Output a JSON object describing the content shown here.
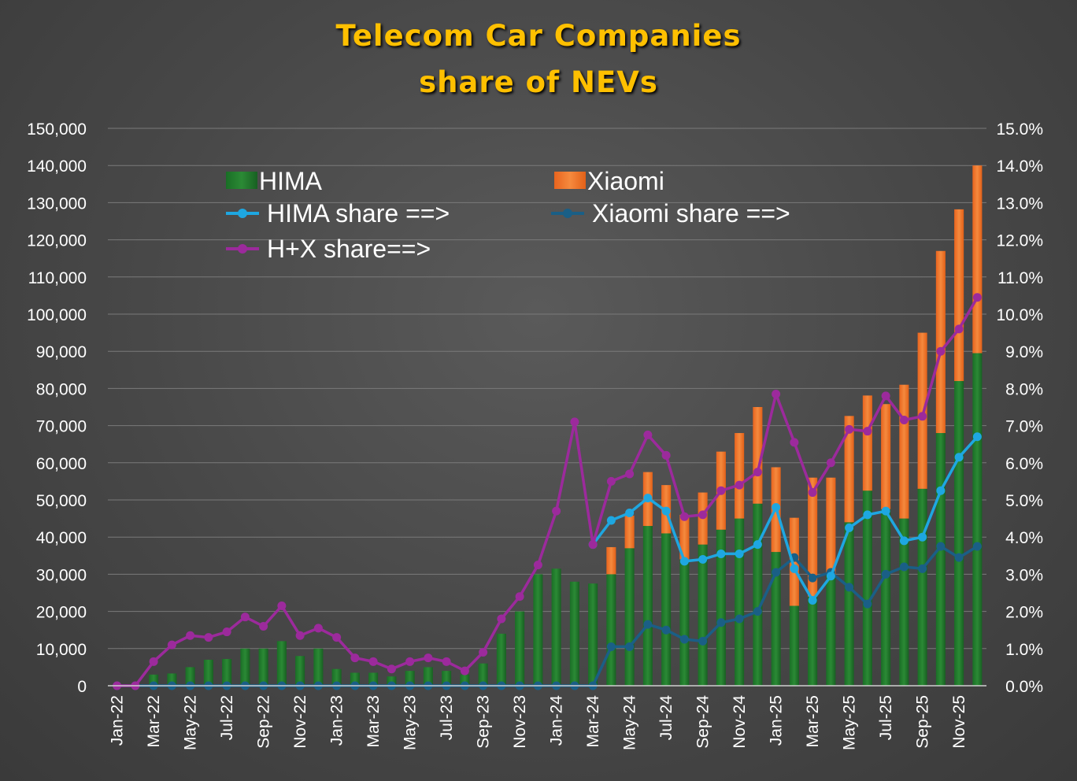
{
  "chart_data": {
    "type": "bar",
    "title_line1": "Telecom Car Companies",
    "title_line2": "share of NEVs",
    "categories": [
      "Jan-22",
      "Feb-22",
      "Mar-22",
      "Apr-22",
      "May-22",
      "Jun-22",
      "Jul-22",
      "Aug-22",
      "Sep-22",
      "Oct-22",
      "Nov-22",
      "Dec-22",
      "Jan-23",
      "Feb-23",
      "Mar-23",
      "Apr-23",
      "May-23",
      "Jun-23",
      "Jul-23",
      "Aug-23",
      "Sep-23",
      "Oct-23",
      "Nov-23",
      "Dec-23",
      "Jan-24",
      "Feb-24",
      "Mar-24",
      "Apr-24",
      "May-24",
      "Jun-24",
      "Jul-24",
      "Aug-24",
      "Sep-24",
      "Oct-24",
      "Nov-24",
      "Dec-24",
      "Jan-25",
      "Feb-25",
      "Mar-25",
      "Apr-25",
      "May-25",
      "Jun-25",
      "Jul-25",
      "Aug-25",
      "Sep-25",
      "Oct-25",
      "Nov-25",
      "Dec-25"
    ],
    "x_tick_labels": [
      "Jan-22",
      "Mar-22",
      "May-22",
      "Jul-22",
      "Sep-22",
      "Nov-22",
      "Jan-23",
      "Mar-23",
      "May-23",
      "Jul-23",
      "Sep-23",
      "Nov-23",
      "Jan-24",
      "Mar-24",
      "May-24",
      "Jul-24",
      "Sep-24",
      "Nov-24",
      "Jan-25",
      "Mar-25",
      "May-25",
      "Jul-25",
      "Sep-25",
      "Nov-25"
    ],
    "y_left": {
      "min": 0,
      "max": 150000,
      "step": 10000,
      "tick_labels": [
        "0",
        "10,000",
        "20,000",
        "30,000",
        "40,000",
        "50,000",
        "60,000",
        "70,000",
        "80,000",
        "90,000",
        "100,000",
        "110,000",
        "120,000",
        "130,000",
        "140,000",
        "150,000"
      ]
    },
    "y_right": {
      "min": 0,
      "max": 15,
      "step": 1,
      "unit": "%",
      "tick_labels": [
        "0.0%",
        "1.0%",
        "2.0%",
        "3.0%",
        "4.0%",
        "5.0%",
        "6.0%",
        "7.0%",
        "8.0%",
        "9.0%",
        "10.0%",
        "11.0%",
        "12.0%",
        "13.0%",
        "14.0%",
        "15.0%"
      ]
    },
    "grid": true,
    "legend_placement": "top-left",
    "bar_series": [
      {
        "name": "HIMA",
        "color": "#1e7a2b",
        "values": [
          0,
          0,
          3000,
          3300,
          5000,
          7000,
          7200,
          10000,
          10000,
          12000,
          8000,
          10000,
          4500,
          3500,
          3500,
          2500,
          4000,
          5000,
          4000,
          3000,
          6000,
          14000,
          20000,
          30000,
          31500,
          28000,
          27500,
          30000,
          37000,
          43000,
          41000,
          34000,
          38000,
          42000,
          45000,
          49000,
          36000,
          21500,
          24000,
          30000,
          44000,
          52500,
          47500,
          45000,
          53000,
          68000,
          82000,
          89500
        ]
      },
      {
        "name": "Xiaomi",
        "color": "#f07830",
        "values": [
          0,
          0,
          0,
          0,
          0,
          0,
          0,
          0,
          0,
          0,
          0,
          0,
          0,
          0,
          0,
          0,
          0,
          0,
          0,
          0,
          0,
          0,
          0,
          0,
          0,
          0,
          0,
          7300,
          8800,
          14500,
          13000,
          12000,
          14000,
          21000,
          23000,
          26000,
          22800,
          23700,
          32000,
          26000,
          28600,
          25600,
          28300,
          36000,
          42000,
          49000,
          46200,
          50500
        ]
      }
    ],
    "line_series": [
      {
        "name": "HIMA share ==>",
        "color": "#1ea7e1",
        "values": [
          null,
          null,
          null,
          null,
          null,
          null,
          null,
          null,
          null,
          null,
          null,
          null,
          null,
          null,
          null,
          null,
          null,
          null,
          null,
          null,
          null,
          null,
          null,
          null,
          null,
          null,
          3.8,
          4.45,
          4.65,
          5.05,
          4.7,
          3.35,
          3.4,
          3.55,
          3.55,
          3.8,
          4.8,
          3.15,
          2.3,
          2.95,
          4.25,
          4.6,
          4.7,
          3.9,
          4.0,
          5.25,
          6.15,
          6.7
        ]
      },
      {
        "name": "Xiaomi share ==>",
        "color": "#1a5f86",
        "values": [
          0,
          0,
          0,
          0,
          0,
          0,
          0,
          0,
          0,
          0,
          0,
          0,
          0,
          0,
          0,
          0,
          0,
          0,
          0,
          0,
          0,
          0,
          0,
          0,
          0,
          0,
          0,
          1.05,
          1.05,
          1.65,
          1.5,
          1.25,
          1.2,
          1.7,
          1.8,
          2.0,
          3.05,
          3.45,
          2.9,
          3.05,
          2.65,
          2.2,
          3.0,
          3.2,
          3.15,
          3.75,
          3.45,
          3.75
        ]
      },
      {
        "name": "H+X share==>",
        "color": "#9c2a9c",
        "values": [
          0,
          0,
          0.65,
          1.1,
          1.35,
          1.3,
          1.45,
          1.85,
          1.6,
          2.15,
          1.35,
          1.55,
          1.3,
          0.75,
          0.65,
          0.45,
          0.65,
          0.75,
          0.65,
          0.4,
          0.9,
          1.8,
          2.4,
          3.25,
          4.7,
          7.1,
          3.8,
          5.5,
          5.7,
          6.75,
          6.2,
          4.55,
          4.6,
          5.25,
          5.4,
          5.75,
          7.85,
          6.55,
          5.2,
          6.0,
          6.9,
          6.85,
          7.8,
          7.15,
          7.25,
          9.0,
          9.6,
          10.45
        ]
      }
    ]
  }
}
